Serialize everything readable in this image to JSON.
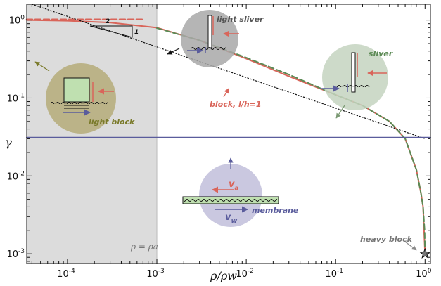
{
  "chart_data": {
    "type": "line",
    "xscale": "log",
    "yscale": "log",
    "xlim": [
      3.5e-05,
      1.15
    ],
    "ylim": [
      0.00075,
      1.6
    ],
    "xlabel": "ρ/ρw",
    "ylabel": "γ",
    "xticks": [
      {
        "value": 0.0001,
        "mant": "10",
        "exp": "-4"
      },
      {
        "value": 0.001,
        "mant": "10",
        "exp": "-3"
      },
      {
        "value": 0.01,
        "mant": "10",
        "exp": "-2"
      },
      {
        "value": 0.1,
        "mant": "10",
        "exp": "-1"
      },
      {
        "value": 1,
        "mant": "10",
        "exp": "0"
      }
    ],
    "yticks": [
      {
        "value": 0.001,
        "mant": "10",
        "exp": "-3"
      },
      {
        "value": 0.01,
        "mant": "10",
        "exp": "-2"
      },
      {
        "value": 0.1,
        "mant": "10",
        "exp": "-1"
      },
      {
        "value": 1,
        "mant": "10",
        "exp": "0"
      }
    ],
    "shaded_region": {
      "x": [
        3.5e-05,
        0.001
      ],
      "label": "ρ = ρa"
    },
    "series": [
      {
        "name": "block, l/h=1",
        "style": "solid",
        "color": "#d9655a",
        "points": [
          [
            3.5e-05,
            1.0
          ],
          [
            0.0001,
            0.98
          ],
          [
            0.0003,
            0.93
          ],
          [
            0.001,
            0.8
          ],
          [
            0.003,
            0.55
          ],
          [
            0.01,
            0.32
          ],
          [
            0.03,
            0.19
          ],
          [
            0.1,
            0.11
          ],
          [
            0.2,
            0.08
          ],
          [
            0.4,
            0.05
          ],
          [
            0.6,
            0.03
          ],
          [
            0.8,
            0.012
          ],
          [
            0.9,
            0.006
          ],
          [
            0.95,
            0.004
          ],
          [
            1.0,
            0.001
          ]
        ]
      },
      {
        "name": "light block",
        "style": "dashed",
        "color": "#d9655a",
        "points": [
          [
            3.5e-05,
            1.02
          ],
          [
            0.0007,
            1.02
          ]
        ]
      },
      {
        "name": "sliver",
        "style": "dashed",
        "color": "#5c8a55",
        "points": [
          [
            0.001,
            0.79
          ],
          [
            0.003,
            0.55
          ],
          [
            0.01,
            0.33
          ],
          [
            0.03,
            0.2
          ],
          [
            0.1,
            0.11
          ],
          [
            0.2,
            0.08
          ],
          [
            0.4,
            0.05
          ],
          [
            0.6,
            0.03
          ],
          [
            0.8,
            0.012
          ],
          [
            0.9,
            0.006
          ],
          [
            0.95,
            0.004
          ],
          [
            0.99,
            0.002
          ],
          [
            1.0,
            0.001
          ]
        ]
      },
      {
        "name": "light sliver",
        "style": "dotted",
        "color": "#111111",
        "points": [
          [
            4e-05,
            1.6
          ],
          [
            1.0,
            0.0301
          ]
        ]
      },
      {
        "name": "membrane",
        "style": "solid",
        "color": "#5a5c9c",
        "points": [
          [
            3.5e-05,
            0.031
          ],
          [
            1.15,
            0.031
          ]
        ]
      }
    ],
    "heavy_block_point": [
      1.0,
      0.001
    ],
    "slope_triangle": {
      "run": "2",
      "rise": "1"
    },
    "annotations": {
      "light_sliver": "light sliver",
      "sliver": "sliver",
      "block": "block, l/h=1",
      "light_block": "light block",
      "membrane": "membrane",
      "heavy_block": "heavy block",
      "va": "v",
      "va_sub": "a",
      "vw": "v",
      "vw_sub": "W"
    }
  },
  "colors": {
    "red": "#d9655a",
    "green": "#5c8a55",
    "blue": "#5a5c9c",
    "shade": "#dcdcdc",
    "olive": "#8a8a3a"
  }
}
